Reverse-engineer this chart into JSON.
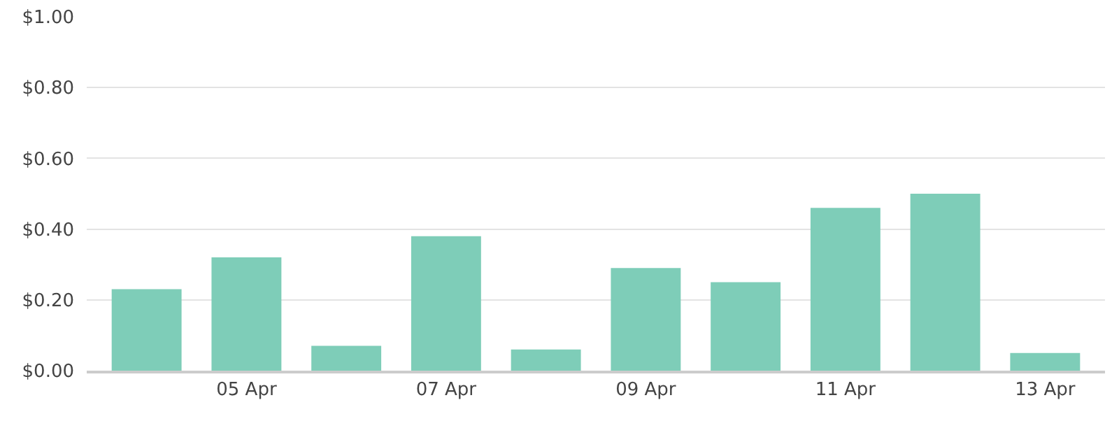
{
  "chart_data": {
    "type": "bar",
    "categories": [
      null,
      "05 Apr",
      null,
      "07 Apr",
      null,
      "09 Apr",
      null,
      "11 Apr",
      null,
      "13 Apr"
    ],
    "values": [
      0.23,
      0.32,
      0.07,
      0.38,
      0.06,
      0.29,
      0.25,
      0.46,
      0.5,
      0.05
    ],
    "color": "#7ecdb8",
    "ylim": [
      0,
      1
    ],
    "yticks": [
      {
        "value": 0,
        "label": "$0.00"
      },
      {
        "value": 0.2,
        "label": "$0.20"
      },
      {
        "value": 0.4,
        "label": "$0.40"
      },
      {
        "value": 0.6,
        "label": "$0.60"
      },
      {
        "value": 0.8,
        "label": "$0.80"
      },
      {
        "value": 1,
        "label": "$1.00"
      }
    ],
    "grid": "y"
  }
}
